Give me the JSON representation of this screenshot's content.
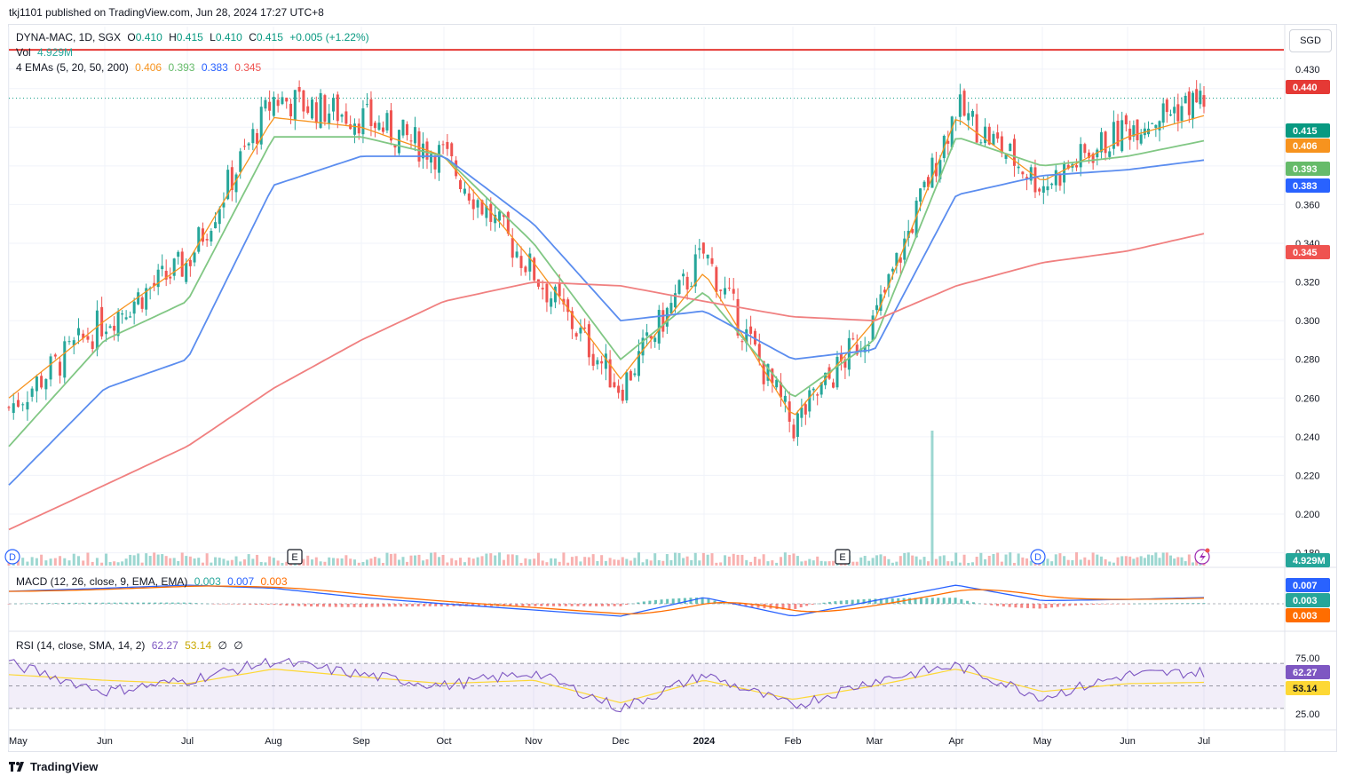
{
  "header": {
    "publisher": "tkj1101 published on TradingView.com, Jun 28, 2024 17:27 UTC+8",
    "currency": "SGD"
  },
  "legend": {
    "symbol": "DYNA-MAC, 1D, SGX",
    "open_label": "O",
    "open": "0.410",
    "high_label": "H",
    "high": "0.415",
    "low_label": "L",
    "low": "0.410",
    "close_label": "C",
    "close": "0.415",
    "change": "+0.005 (+1.22%)",
    "vol_label": "Vol",
    "vol": "4.929M",
    "ema_label": "4 EMAs (5, 20, 50, 200)",
    "ema5": "0.406",
    "ema20": "0.393",
    "ema50": "0.383",
    "ema200": "0.345",
    "macd_label": "MACD (12, 26, close, 9, EMA, EMA)",
    "macd_hist": "0.003",
    "macd_line": "0.007",
    "macd_signal": "0.003",
    "rsi_label": "RSI (14, close, SMA, 14, 2)",
    "rsi": "62.27",
    "rsi_ma": "53.14",
    "rsi_u1": "∅",
    "rsi_u2": "∅"
  },
  "colors": {
    "up": "#26a69a",
    "down": "#ef5350",
    "ema5": "#f7931e",
    "ema20": "#81c784",
    "ema50": "#5b8def",
    "ema200": "#f08080",
    "hline": "#e53935",
    "macd": "#2962ff",
    "signal": "#ff6d00",
    "rsi": "#7e57c2",
    "rsi_ma": "#fdd835"
  },
  "price_labels": {
    "hline": "0.440",
    "last": "0.415",
    "ema5": "0.406",
    "ema20": "0.393",
    "ema50": "0.383",
    "ema200": "0.345",
    "vol": "4.929M",
    "macd_line": "0.007",
    "macd_hist": "0.003",
    "macd_signal": "0.003",
    "rsi": "62.27",
    "rsi_ma": "53.14"
  },
  "event_markers": [
    "D",
    "E",
    "E",
    "D"
  ],
  "footer": {
    "brand": "TradingView"
  },
  "chart_data": {
    "type": "line",
    "title": "DYNA-MAC, 1D, SGX",
    "x_ticks": [
      "May",
      "Jun",
      "Jul",
      "Aug",
      "Sep",
      "Oct",
      "Nov",
      "Dec",
      "2024",
      "Feb",
      "Mar",
      "Apr",
      "May",
      "Jun",
      "Jul"
    ],
    "y_ticks": [
      "0.430",
      "0.420",
      "0.400",
      "0.380",
      "0.360",
      "0.340",
      "0.320",
      "0.300",
      "0.280",
      "0.260",
      "0.240",
      "0.220",
      "0.200",
      "0.180"
    ],
    "ylim": [
      0.172,
      0.452
    ],
    "horizontal_line": 0.44,
    "months": [
      "May 2023",
      "Jun",
      "Jul",
      "Aug",
      "Sep",
      "Oct",
      "Nov",
      "Dec",
      "Jan 2024",
      "Feb",
      "Mar",
      "Apr",
      "May",
      "Jun",
      "Jun 28"
    ],
    "series": [
      {
        "name": "DYNA-MAC close",
        "values": [
          0.255,
          0.3,
          0.33,
          0.415,
          0.405,
          0.385,
          0.325,
          0.265,
          0.335,
          0.245,
          0.3,
          0.41,
          0.37,
          0.4,
          0.415
        ]
      },
      {
        "name": "EMA 5",
        "values": [
          0.26,
          0.3,
          0.33,
          0.405,
          0.4,
          0.385,
          0.33,
          0.27,
          0.325,
          0.25,
          0.3,
          0.405,
          0.372,
          0.395,
          0.406
        ]
      },
      {
        "name": "EMA 20",
        "values": [
          0.235,
          0.29,
          0.31,
          0.395,
          0.395,
          0.385,
          0.34,
          0.28,
          0.315,
          0.26,
          0.29,
          0.395,
          0.38,
          0.385,
          0.393
        ]
      },
      {
        "name": "EMA 50",
        "values": [
          0.215,
          0.265,
          0.28,
          0.37,
          0.385,
          0.385,
          0.35,
          0.3,
          0.305,
          0.28,
          0.285,
          0.365,
          0.375,
          0.378,
          0.383
        ]
      },
      {
        "name": "EMA 200",
        "values": [
          0.192,
          0.215,
          0.235,
          0.265,
          0.29,
          0.31,
          0.32,
          0.318,
          0.31,
          0.302,
          0.3,
          0.318,
          0.33,
          0.336,
          0.345
        ]
      }
    ],
    "rsi_ticks": [
      "75.00",
      "25.00"
    ],
    "rsi_values": [
      70,
      45,
      55,
      72,
      60,
      50,
      62,
      30,
      60,
      32,
      55,
      68,
      40,
      60,
      62.27
    ],
    "rsi_ma_values": [
      60,
      55,
      52,
      65,
      58,
      52,
      55,
      35,
      55,
      38,
      50,
      65,
      45,
      52,
      53.14
    ]
  }
}
